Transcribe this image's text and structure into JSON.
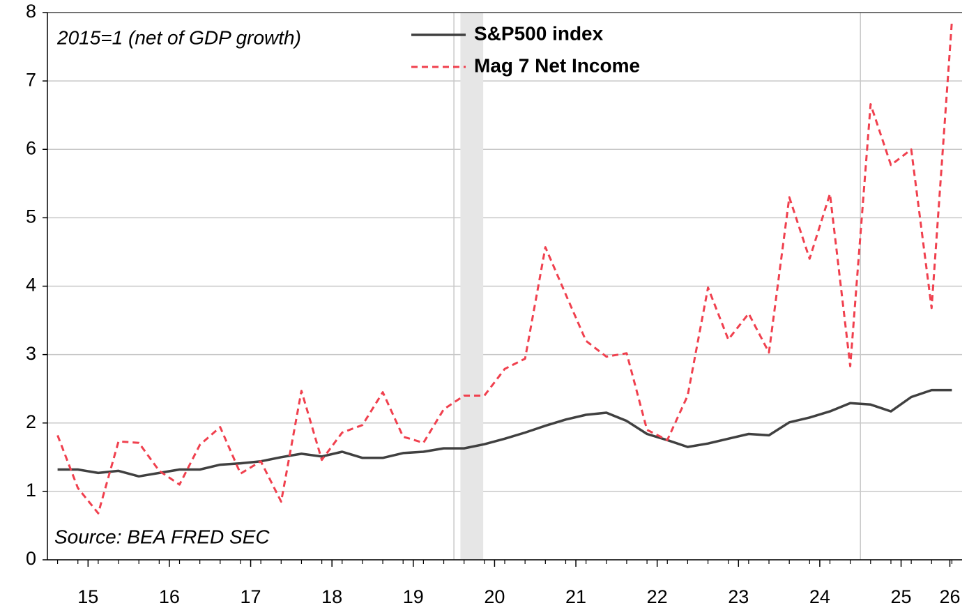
{
  "chart_data": {
    "type": "line",
    "annotations": [
      "2015=1 (net of GDP growth)",
      "Source: BEA FRED SEC"
    ],
    "x": [
      2015.125,
      2015.375,
      2015.625,
      2015.875,
      2016.125,
      2016.375,
      2016.625,
      2016.875,
      2017.125,
      2017.375,
      2017.625,
      2017.875,
      2018.125,
      2018.375,
      2018.625,
      2018.875,
      2019.125,
      2019.375,
      2019.625,
      2019.875,
      2020.125,
      2020.375,
      2020.625,
      2020.875,
      2021.125,
      2021.375,
      2021.625,
      2021.875,
      2022.125,
      2022.375,
      2022.625,
      2022.875,
      2023.125,
      2023.375,
      2023.625,
      2023.875,
      2024.125,
      2024.375,
      2024.625,
      2024.875,
      2025.125,
      2025.375,
      2025.625,
      2025.875,
      2026.125
    ],
    "series": [
      {
        "name": "S&P500 index",
        "color": "#404040",
        "dash": false,
        "values": [
          1.32,
          1.32,
          1.27,
          1.3,
          1.22,
          1.27,
          1.32,
          1.32,
          1.39,
          1.41,
          1.44,
          1.5,
          1.55,
          1.51,
          1.58,
          1.49,
          1.49,
          1.56,
          1.58,
          1.63,
          1.63,
          1.69,
          1.77,
          1.86,
          1.96,
          2.05,
          2.12,
          2.15,
          2.03,
          1.84,
          1.75,
          1.65,
          1.7,
          1.77,
          1.84,
          1.82,
          2.01,
          2.08,
          2.17,
          2.29,
          2.27,
          2.17,
          2.38,
          2.48,
          2.48
        ]
      },
      {
        "name": "Mag 7 Net Income",
        "color": "#f0404e",
        "dash": true,
        "values": [
          1.82,
          1.05,
          0.68,
          1.73,
          1.71,
          1.3,
          1.1,
          1.68,
          1.94,
          1.26,
          1.44,
          0.85,
          2.47,
          1.46,
          1.86,
          1.97,
          2.45,
          1.8,
          1.71,
          2.2,
          2.4,
          2.4,
          2.79,
          2.94,
          4.57,
          3.88,
          3.2,
          2.97,
          3.02,
          1.9,
          1.75,
          2.4,
          3.98,
          3.22,
          3.6,
          3.03,
          5.3,
          4.4,
          5.35,
          2.83,
          6.66,
          5.77,
          6.0,
          3.68,
          7.87
        ]
      }
    ],
    "xlim": [
      2015,
      2026.25
    ],
    "xticks": [
      {
        "value": 2015.5,
        "label": "15"
      },
      {
        "value": 2016.5,
        "label": "16"
      },
      {
        "value": 2017.5,
        "label": "17"
      },
      {
        "value": 2018.5,
        "label": "18"
      },
      {
        "value": 2019.5,
        "label": "19"
      },
      {
        "value": 2020.5,
        "label": "20"
      },
      {
        "value": 2021.5,
        "label": "21"
      },
      {
        "value": 2022.5,
        "label": "22"
      },
      {
        "value": 2023.5,
        "label": "23"
      },
      {
        "value": 2024.5,
        "label": "24"
      },
      {
        "value": 2025.5,
        "label": "25"
      },
      {
        "value": 2026.1,
        "label": "26"
      }
    ],
    "ylim": [
      0,
      8
    ],
    "yticks": [
      0,
      1,
      2,
      3,
      4,
      5,
      6,
      7,
      8
    ],
    "grid": true,
    "vlines": [
      2020,
      2025
    ],
    "shaded": [
      2020.08,
      2020.36
    ],
    "legend": "top"
  }
}
